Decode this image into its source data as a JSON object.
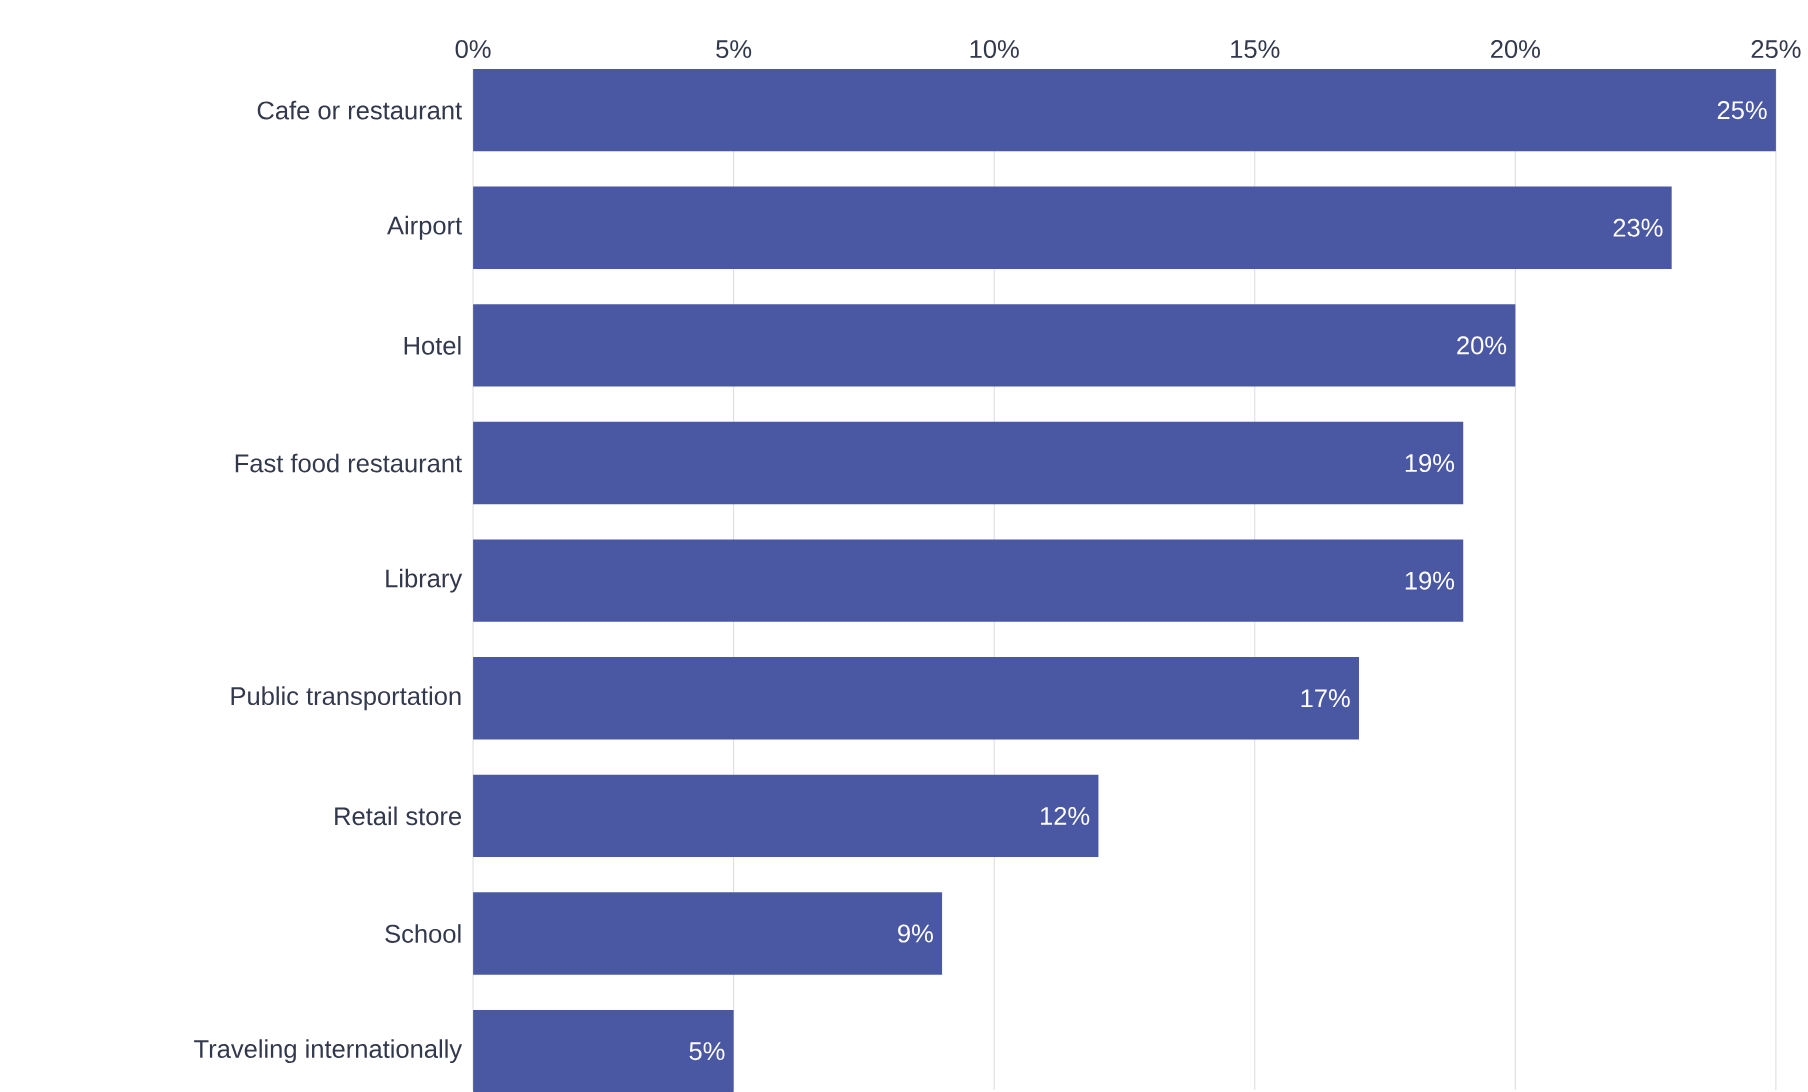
{
  "chart_data": {
    "type": "bar",
    "orientation": "horizontal",
    "categories": [
      "Cafe or restaurant",
      "Airport",
      "Hotel",
      "Fast food restaurant",
      "Library",
      "Public transportation",
      "Retail store",
      "School",
      "Traveling internationally"
    ],
    "values": [
      25,
      23,
      20,
      19,
      19,
      17,
      12,
      9,
      5
    ],
    "value_labels": [
      "25%",
      "23%",
      "20%",
      "19%",
      "19%",
      "17%",
      "12%",
      "9%",
      "5%"
    ],
    "color": "#4a57a3",
    "xlim": [
      0,
      25
    ],
    "xticks": [
      {
        "value": 0,
        "label": "0%"
      },
      {
        "value": 5,
        "label": "5%"
      },
      {
        "value": 10,
        "label": "10%"
      },
      {
        "value": 15,
        "label": "15%"
      },
      {
        "value": 20,
        "label": "20%"
      },
      {
        "value": 25,
        "label": "25%"
      }
    ],
    "grid": "x"
  }
}
